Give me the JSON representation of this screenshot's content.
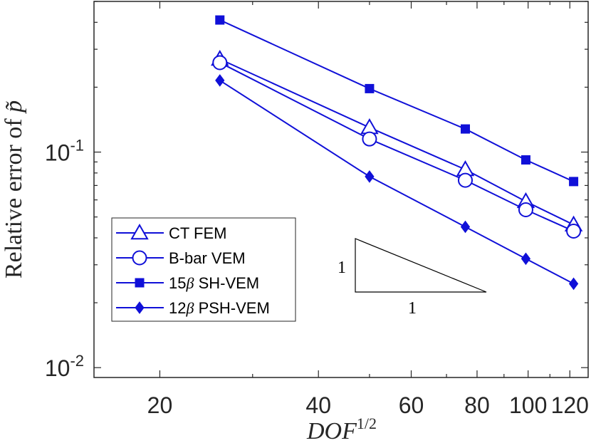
{
  "chart_data": {
    "type": "line",
    "xscale": "log",
    "yscale": "log",
    "xlabel_base": "DOF",
    "xlabel_exp": "1/2",
    "ylabel_prefix": "Relative error of ",
    "ylabel_symbol": "p̃",
    "xlim": [
      15,
      130
    ],
    "ylim": [
      0.009,
      0.5
    ],
    "x_ticks": [
      20,
      40,
      60,
      80,
      100,
      120
    ],
    "x_tick_labels": [
      "20",
      "40",
      "60",
      "80",
      "100",
      "120"
    ],
    "y_ticks": [
      0.1,
      0.01
    ],
    "y_tick_labels": [
      {
        "base": "10",
        "exp": "-1"
      },
      {
        "base": "10",
        "exp": "-2"
      }
    ],
    "grid": false,
    "legend_position": "bottom-left",
    "line_color": "#1010d8",
    "x": [
      26,
      50,
      76,
      99,
      122
    ],
    "series": [
      {
        "name": "CT FEM",
        "label_main": "CT FEM",
        "label_sym": "",
        "marker": "triangle",
        "values": [
          0.27,
          0.13,
          0.083,
          0.059,
          0.046
        ]
      },
      {
        "name": "B-bar VEM",
        "label_main": "B-bar VEM",
        "label_sym": "",
        "marker": "circle",
        "values": [
          0.26,
          0.115,
          0.074,
          0.054,
          0.043
        ]
      },
      {
        "name": "15β SH-VEM",
        "label_main": "15",
        "label_sym": "β",
        "label_rest": " SH-VEM",
        "marker": "square",
        "values": [
          0.41,
          0.197,
          0.128,
          0.092,
          0.073
        ]
      },
      {
        "name": "12β PSH-VEM",
        "label_main": "12",
        "label_sym": "β",
        "label_rest": " PSH-VEM",
        "marker": "diamond",
        "values": [
          0.215,
          0.077,
          0.045,
          0.032,
          0.0245
        ]
      }
    ],
    "slope_triangle": {
      "vertical_label": "1",
      "horizontal_label": "1"
    }
  }
}
